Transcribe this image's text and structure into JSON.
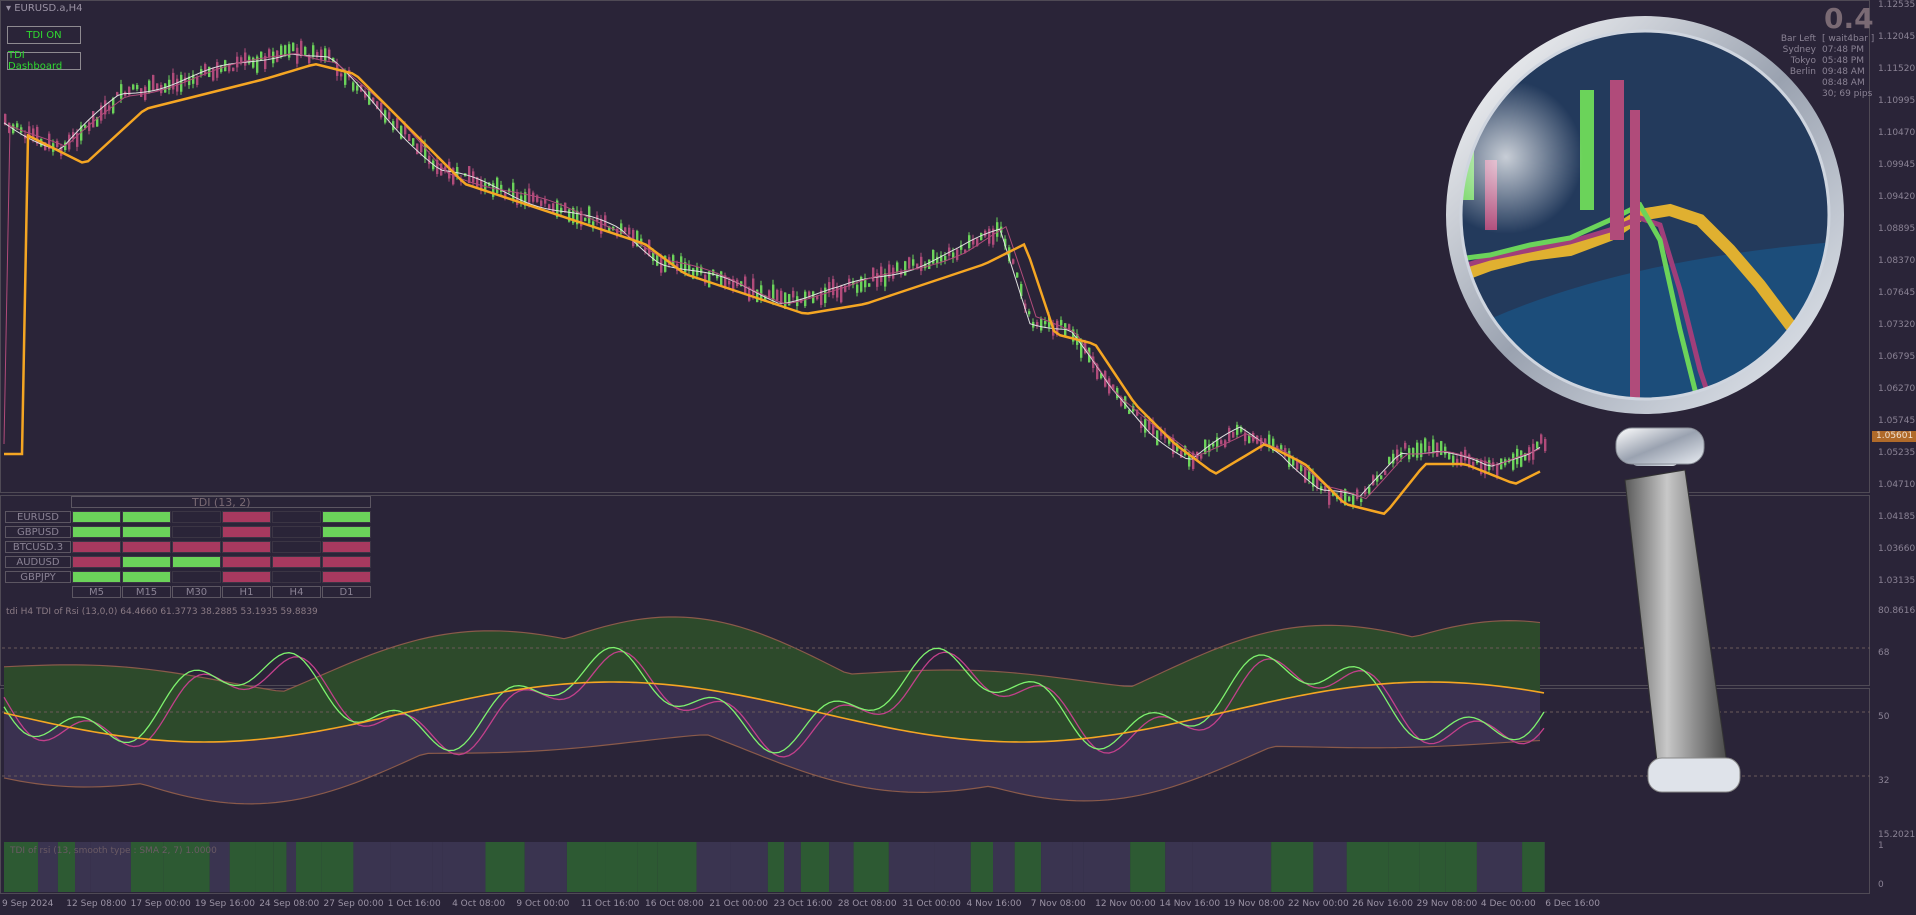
{
  "window": {
    "title": "EURUSD.a,H4"
  },
  "buttons": {
    "tdi_on": "TDI ON",
    "tdi_dashboard": "TDI Dashboard"
  },
  "info_panel": {
    "big_value": "0.4",
    "rows": [
      {
        "label": "Bar Left",
        "value": "[ wait4bar ]"
      },
      {
        "label": "Sydney",
        "value": "07:48 PM"
      },
      {
        "label": "Tokyo",
        "value": "05:48 PM"
      },
      {
        "label": "Berlin",
        "value": "09:48 AM"
      },
      {
        "label": "",
        "value": "08:48 AM"
      },
      {
        "label": "",
        "value": "30; 69 pips"
      }
    ]
  },
  "price_axis": {
    "labels": [
      "1.12535",
      "1.12045",
      "1.11520",
      "1.10995",
      "1.10470",
      "1.09945",
      "1.09420",
      "1.08895",
      "1.08370",
      "1.07645",
      "1.07320",
      "1.06795",
      "1.06270",
      "1.05745",
      "1.05235",
      "1.04710",
      "1.04185",
      "1.03660",
      "1.03135"
    ],
    "current_price": "1.05601"
  },
  "dashboard": {
    "title": "TDI (13, 2)",
    "pairs": [
      "EURUSD",
      "GBPUSD",
      "BTCUSD.3",
      "AUDUSD",
      "GBPJPY"
    ],
    "timeframes": [
      "M5",
      "M15",
      "M30",
      "H1",
      "H4",
      "D1"
    ],
    "cells": [
      [
        "up",
        "up",
        "none",
        "down",
        "none",
        "up"
      ],
      [
        "up",
        "up",
        "none",
        "down",
        "none",
        "up"
      ],
      [
        "down",
        "down",
        "down",
        "down",
        "none",
        "down"
      ],
      [
        "down",
        "up",
        "up",
        "down",
        "down",
        "down"
      ],
      [
        "up",
        "up",
        "none",
        "down",
        "none",
        "down"
      ]
    ],
    "colors": {
      "up": "#6bd35a",
      "down": "#a8395f",
      "none": "#2a2438"
    }
  },
  "tdi_panel": {
    "label": "tdi H4 TDI of Rsi (13,0,0) 64.4660 61.3773 38.2885 53.1935 59.8839",
    "levels": [
      "80.8616",
      "68",
      "50",
      "32",
      "15.2021"
    ]
  },
  "hist_panel": {
    "label": "TDI of rsi  (13, smooth type : SMA 2, 7) 1.0000",
    "levels": [
      "1",
      "0"
    ]
  },
  "time_axis": [
    "9 Sep 2024",
    "12 Sep 08:00",
    "17 Sep 00:00",
    "19 Sep 16:00",
    "24 Sep 08:00",
    "27 Sep 00:00",
    "1 Oct 16:00",
    "4 Oct 08:00",
    "9 Oct 00:00",
    "11 Oct 16:00",
    "16 Oct 08:00",
    "21 Oct 00:00",
    "23 Oct 16:00",
    "28 Oct 08:00",
    "31 Oct 00:00",
    "4 Nov 16:00",
    "7 Nov 08:00",
    "12 Nov 00:00",
    "14 Nov 16:00",
    "19 Nov 08:00",
    "22 Nov 00:00",
    "26 Nov 16:00",
    "29 Nov 08:00",
    "4 Dec 00:00",
    "6 Dec 16:00"
  ],
  "colors": {
    "background": "#2a2438",
    "bull": "#6bd35a",
    "bear": "#b04b7a",
    "ma_slow": "#f5a623",
    "ma_fast": "#e0e0e0",
    "rsi_line": "#7ef26e",
    "signal_line": "#c2408b",
    "band_fill": "#2d4a2b",
    "band_line": "#8a5a4a"
  }
}
